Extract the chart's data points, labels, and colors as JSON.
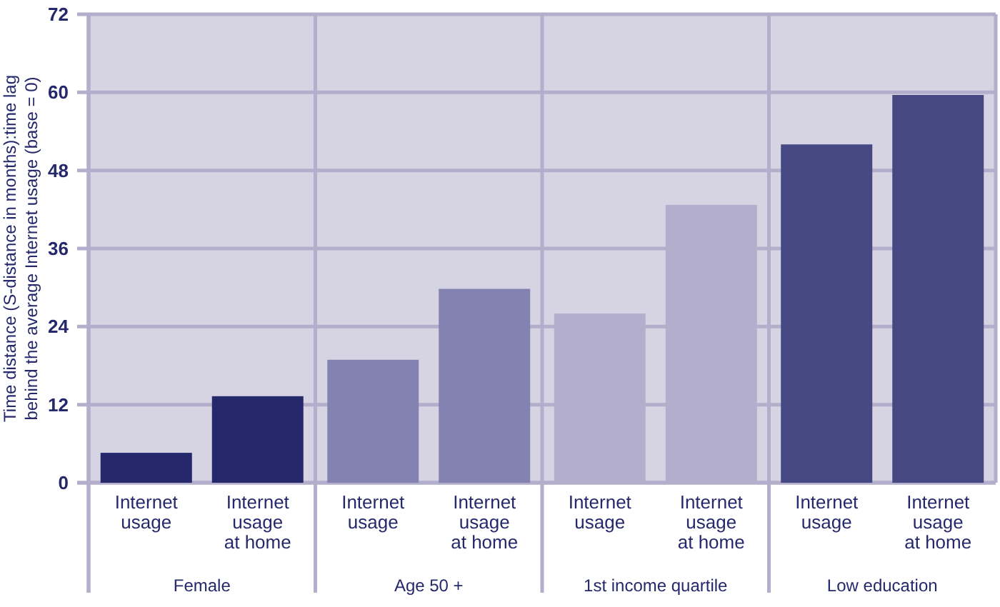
{
  "chart_data": {
    "type": "bar",
    "ylabel": "Time distance (S-distance in months):time lag behind the average Internet usage (base = 0)",
    "categories": [
      "Internet usage",
      "Internet usage at home",
      "Internet usage",
      "Internet usage at home",
      "Internet usage",
      "Internet usage at home",
      "Internet usage",
      "Internet usage at home"
    ],
    "values": [
      4.6,
      13.3,
      18.9,
      29.8,
      26.0,
      42.7,
      52.0,
      59.6
    ],
    "colors": [
      "#25286b",
      "#25286b",
      "#8382b0",
      "#8382b0",
      "#b2aecc",
      "#b2aecc",
      "#454882",
      "#454882"
    ],
    "annotations": [
      "Female",
      "Age 50 +",
      "1st income quartile",
      "Low education"
    ],
    "ylim": [
      0,
      72
    ],
    "yticks": [
      0,
      12,
      24,
      36,
      48,
      60,
      72
    ],
    "grid": "y"
  }
}
